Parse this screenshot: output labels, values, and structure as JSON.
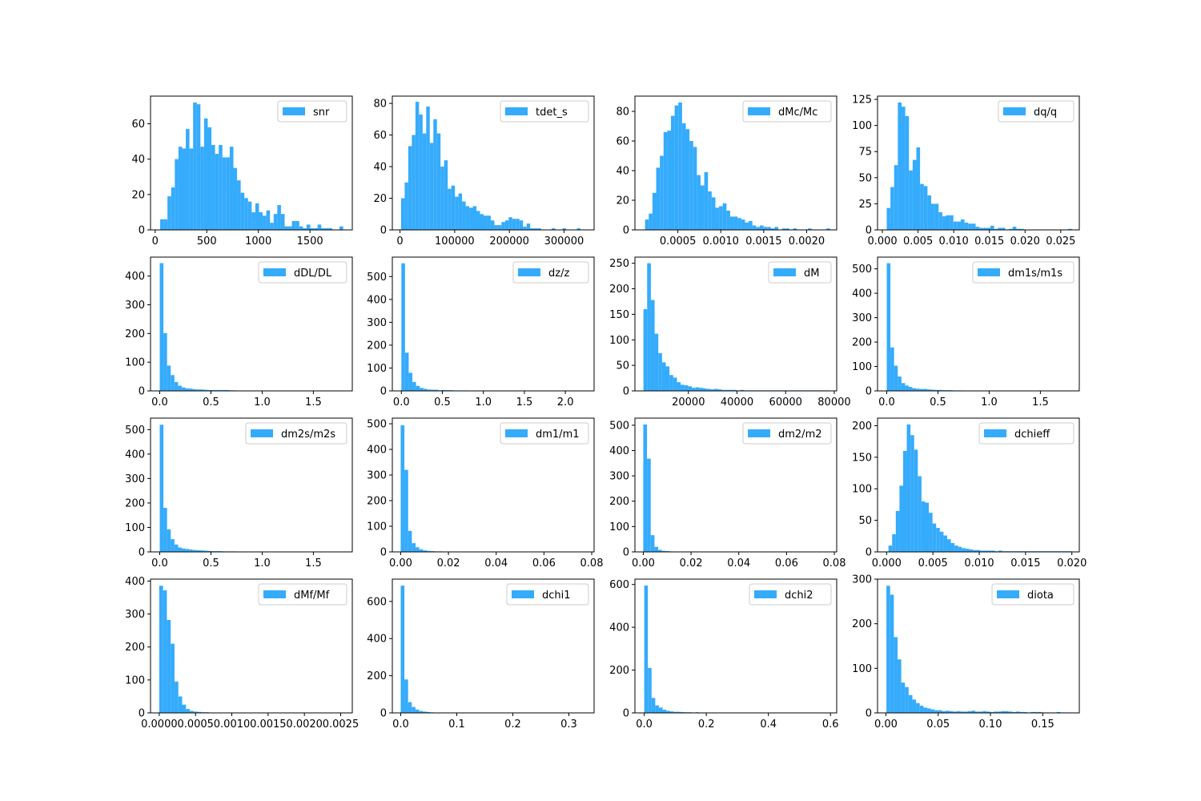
{
  "figure": {
    "bar_color": "#35abfc",
    "rows": 4,
    "cols": 4
  },
  "chart_data": [
    {
      "type": "bar",
      "legend": "snr",
      "legend_position": "upper right",
      "xlim": [
        -45,
        1910
      ],
      "ylim": [
        0,
        75.6
      ],
      "xticks": [
        0,
        500,
        1000,
        1500
      ],
      "xtick_labels": [
        "0",
        "500",
        "1000",
        "1500"
      ],
      "yticks": [
        0,
        20,
        40,
        60
      ],
      "ytick_labels": [
        "0",
        "20",
        "40",
        "60"
      ],
      "bin_start": 48.4,
      "bin_width": 35.47,
      "counts": [
        6,
        6,
        19,
        24,
        40,
        47,
        46,
        57,
        46,
        72,
        71,
        47,
        63,
        58,
        48,
        43,
        48,
        41,
        41,
        47,
        35,
        28,
        21,
        18,
        16,
        10,
        15,
        10,
        8,
        11,
        4,
        9,
        14,
        9,
        2,
        2,
        5,
        5,
        2,
        1,
        3,
        1,
        1,
        3,
        1,
        1,
        1,
        0,
        0,
        2
      ]
    },
    {
      "type": "bar",
      "legend": "tdet_s",
      "legend_position": "upper right",
      "xlim": [
        -14000,
        355000
      ],
      "ylim": [
        0,
        84.6
      ],
      "xticks": [
        0,
        100000,
        200000,
        300000
      ],
      "xtick_labels": [
        "0",
        "100000",
        "200000",
        "300000"
      ],
      "yticks": [
        0,
        20,
        40,
        60,
        80
      ],
      "ytick_labels": [
        "0",
        "20",
        "40",
        "60",
        "80"
      ],
      "bin_start": 2000,
      "bin_width": 6560,
      "counts": [
        20,
        30,
        53,
        60,
        81,
        73,
        61,
        78,
        55,
        70,
        61,
        40,
        44,
        26,
        28,
        21,
        23,
        18,
        15,
        14,
        15,
        12,
        10,
        9,
        9,
        6,
        3,
        3,
        5,
        6,
        8,
        7,
        7,
        6,
        2,
        4,
        1,
        1,
        1,
        0,
        0,
        0,
        1,
        0,
        0,
        1,
        0,
        0,
        0,
        1
      ]
    },
    {
      "type": "bar",
      "legend": "dMc/Mc",
      "legend_position": "upper right",
      "xlim": [
        0.0,
        0.00235
      ],
      "ylim": [
        0,
        90.3
      ],
      "xticks": [
        0.0005,
        0.001,
        0.0015,
        0.002
      ],
      "xtick_labels": [
        "0.0005",
        "0.0010",
        "0.0015",
        "0.0020"
      ],
      "yticks": [
        0,
        20,
        40,
        60,
        80
      ],
      "ytick_labels": [
        "0",
        "20",
        "40",
        "60",
        "80"
      ],
      "bin_start": 0.000118,
      "bin_width": 4.31e-05,
      "counts": [
        7,
        11,
        25,
        42,
        50,
        66,
        67,
        77,
        84,
        86,
        72,
        68,
        60,
        56,
        37,
        30,
        39,
        26,
        22,
        15,
        16,
        18,
        13,
        9,
        9,
        8,
        7,
        5,
        6,
        3,
        2,
        3,
        2,
        2,
        1,
        2,
        0,
        1,
        1,
        0,
        1,
        0,
        0,
        0,
        1,
        0,
        0,
        0,
        0,
        1
      ]
    },
    {
      "type": "bar",
      "legend": "dq/q",
      "legend_position": "upper right",
      "xlim": [
        -0.00068,
        0.0276
      ],
      "ylim": [
        0,
        128.1
      ],
      "xticks": [
        0.0,
        0.005,
        0.01,
        0.015,
        0.02,
        0.025
      ],
      "xtick_labels": [
        "0.000",
        "0.005",
        "0.010",
        "0.015",
        "0.020",
        "0.025"
      ],
      "yticks": [
        0,
        25,
        50,
        75,
        100,
        125
      ],
      "ytick_labels": [
        "0",
        "25",
        "50",
        "75",
        "100",
        "125"
      ],
      "bin_start": 0.00061,
      "bin_width": 0.000519,
      "counts": [
        21,
        41,
        62,
        122,
        118,
        109,
        57,
        67,
        79,
        44,
        42,
        33,
        25,
        25,
        17,
        13,
        14,
        14,
        8,
        8,
        10,
        7,
        6,
        6,
        3,
        2,
        2,
        2,
        4,
        1,
        2,
        2,
        0,
        1,
        3,
        1,
        1,
        0,
        0,
        0,
        0,
        0,
        0,
        0,
        0,
        0,
        0,
        0,
        0,
        1
      ]
    },
    {
      "type": "bar",
      "legend": "dDL/DL",
      "legend_position": "upper right",
      "xlim": [
        -0.09,
        1.88
      ],
      "ylim": [
        0,
        466
      ],
      "xticks": [
        0.0,
        0.5,
        1.0,
        1.5
      ],
      "xtick_labels": [
        "0.0",
        "0.5",
        "1.0",
        "1.5"
      ],
      "yticks": [
        0,
        100,
        200,
        300,
        400
      ],
      "ytick_labels": [
        "0",
        "100",
        "200",
        "300",
        "400"
      ],
      "bin_start": 0.0,
      "bin_width": 0.0358,
      "counts": [
        445,
        201,
        88,
        55,
        31,
        18,
        12,
        9,
        8,
        6,
        5,
        5,
        4,
        3,
        3,
        3,
        3,
        3,
        3,
        2,
        2,
        1,
        1,
        1,
        1,
        1,
        1,
        1,
        1,
        1,
        1,
        1,
        1,
        1,
        1,
        1,
        1,
        1,
        1,
        1,
        1,
        1,
        1,
        1,
        1,
        1,
        1,
        1,
        1,
        1
      ]
    },
    {
      "type": "bar",
      "legend": "dz/z",
      "legend_position": "upper right",
      "xlim": [
        -0.11,
        2.35
      ],
      "ylim": [
        0,
        585
      ],
      "xticks": [
        0.0,
        0.5,
        1.0,
        1.5,
        2.0
      ],
      "xtick_labels": [
        "0.0",
        "0.5",
        "1.0",
        "1.5",
        "2.0"
      ],
      "yticks": [
        0,
        100,
        200,
        300,
        400,
        500
      ],
      "ytick_labels": [
        "0",
        "100",
        "200",
        "300",
        "400",
        "500"
      ],
      "bin_start": 0.0,
      "bin_width": 0.0448,
      "counts": [
        558,
        167,
        79,
        39,
        22,
        13,
        9,
        6,
        5,
        5,
        3,
        4,
        3,
        3,
        2,
        2,
        2,
        2,
        1,
        1,
        1,
        1,
        1,
        1,
        1,
        1,
        1,
        1,
        1,
        1,
        1,
        1,
        1,
        1,
        1,
        1,
        1,
        1,
        1,
        1,
        1,
        1,
        1,
        1,
        1,
        1,
        1,
        1,
        1,
        1
      ]
    },
    {
      "type": "bar",
      "legend": "dM",
      "legend_position": "upper right",
      "xlim": [
        -2000,
        81000
      ],
      "ylim": [
        0,
        262
      ],
      "xticks": [
        20000,
        40000,
        60000,
        80000
      ],
      "xtick_labels": [
        "20000",
        "40000",
        "60000",
        "80000"
      ],
      "yticks": [
        0,
        50,
        100,
        150,
        200,
        250
      ],
      "ytick_labels": [
        "0",
        "50",
        "100",
        "150",
        "200",
        "250"
      ],
      "bin_start": 1500,
      "bin_width": 1530,
      "counts": [
        160,
        250,
        178,
        112,
        74,
        56,
        48,
        31,
        26,
        17,
        12,
        11,
        9,
        6,
        7,
        6,
        5,
        4,
        3,
        4,
        3,
        2,
        2,
        2,
        2,
        1,
        2,
        1,
        1,
        1,
        1,
        1,
        1,
        1,
        1,
        1,
        1,
        1,
        1,
        1,
        1,
        1,
        1,
        1,
        1,
        1,
        1,
        1,
        1,
        1
      ]
    },
    {
      "type": "bar",
      "legend": "dm1s/m1s",
      "legend_position": "upper right",
      "xlim": [
        -0.09,
        1.88
      ],
      "ylim": [
        0,
        548
      ],
      "xticks": [
        0.0,
        0.5,
        1.0,
        1.5
      ],
      "xtick_labels": [
        "0.0",
        "0.5",
        "1.0",
        "1.5"
      ],
      "yticks": [
        0,
        100,
        200,
        300,
        400,
        500
      ],
      "ytick_labels": [
        "0",
        "100",
        "200",
        "300",
        "400",
        "500"
      ],
      "bin_start": 0.0,
      "bin_width": 0.0358,
      "counts": [
        523,
        178,
        103,
        59,
        32,
        22,
        16,
        11,
        9,
        8,
        8,
        6,
        5,
        4,
        4,
        3,
        3,
        3,
        2,
        2,
        2,
        1,
        1,
        1,
        1,
        1,
        1,
        1,
        1,
        1,
        1,
        1,
        1,
        1,
        1,
        1,
        1,
        1,
        1,
        1,
        1,
        1,
        1,
        1,
        1,
        1,
        1,
        1,
        1,
        1
      ]
    },
    {
      "type": "bar",
      "legend": "dm2s/m2s",
      "legend_position": "upper right",
      "xlim": [
        -0.09,
        1.88
      ],
      "ylim": [
        0,
        547
      ],
      "xticks": [
        0.0,
        0.5,
        1.0,
        1.5
      ],
      "xtick_labels": [
        "0.0",
        "0.5",
        "1.0",
        "1.5"
      ],
      "yticks": [
        0,
        100,
        200,
        300,
        400,
        500
      ],
      "ytick_labels": [
        "0",
        "100",
        "200",
        "300",
        "400",
        "500"
      ],
      "bin_start": 0.0,
      "bin_width": 0.0358,
      "counts": [
        520,
        180,
        92,
        52,
        30,
        18,
        14,
        12,
        10,
        8,
        7,
        6,
        5,
        4,
        3,
        3,
        3,
        2,
        2,
        2,
        2,
        1,
        1,
        1,
        1,
        1,
        1,
        1,
        1,
        1,
        1,
        1,
        1,
        1,
        1,
        1,
        1,
        1,
        1,
        1,
        1,
        1,
        1,
        1,
        1,
        1,
        1,
        1,
        1,
        1
      ]
    },
    {
      "type": "bar",
      "legend": "dm1/m1",
      "legend_position": "upper right",
      "xlim": [
        -0.0035,
        0.081
      ],
      "ylim": [
        0,
        522
      ],
      "xticks": [
        0.0,
        0.02,
        0.04,
        0.06,
        0.08
      ],
      "xtick_labels": [
        "0.00",
        "0.02",
        "0.04",
        "0.06",
        "0.08"
      ],
      "yticks": [
        0,
        100,
        200,
        300,
        400,
        500
      ],
      "ytick_labels": [
        "0",
        "100",
        "200",
        "300",
        "400",
        "500"
      ],
      "bin_start": 0.0,
      "bin_width": 0.00156,
      "counts": [
        494,
        320,
        82,
        34,
        18,
        10,
        6,
        4,
        3,
        2,
        2,
        1,
        1,
        1,
        1,
        1,
        1,
        1,
        1,
        1,
        1,
        1,
        1,
        1,
        1,
        1,
        1,
        1,
        1,
        1,
        1,
        1,
        1,
        1,
        1,
        1,
        1,
        1,
        1,
        1,
        1,
        1,
        1,
        1,
        1,
        1,
        1,
        1,
        1,
        1
      ]
    },
    {
      "type": "bar",
      "legend": "dm2/m2",
      "legend_position": "upper right",
      "xlim": [
        -0.0035,
        0.081
      ],
      "ylim": [
        0,
        528
      ],
      "xticks": [
        0.0,
        0.02,
        0.04,
        0.06,
        0.08
      ],
      "xtick_labels": [
        "0.00",
        "0.02",
        "0.04",
        "0.06",
        "0.08"
      ],
      "yticks": [
        0,
        100,
        200,
        300,
        400,
        500
      ],
      "ytick_labels": [
        "0",
        "100",
        "200",
        "300",
        "400",
        "500"
      ],
      "bin_start": 0.0,
      "bin_width": 0.00156,
      "counts": [
        503,
        368,
        66,
        20,
        8,
        4,
        3,
        2,
        1,
        1,
        1,
        1,
        1,
        1,
        1,
        1,
        1,
        1,
        1,
        1,
        1,
        1,
        1,
        1,
        1,
        1,
        1,
        1,
        1,
        1,
        1,
        1,
        1,
        1,
        1,
        1,
        1,
        1,
        1,
        1,
        1,
        1,
        1,
        1,
        1,
        1,
        1,
        1,
        1,
        1
      ]
    },
    {
      "type": "bar",
      "legend": "dchieff",
      "legend_position": "upper right",
      "xlim": [
        -0.00098,
        0.0208
      ],
      "ylim": [
        0,
        212
      ],
      "xticks": [
        0.0,
        0.005,
        0.01,
        0.015,
        0.02
      ],
      "xtick_labels": [
        "0.000",
        "0.005",
        "0.010",
        "0.015",
        "0.020"
      ],
      "yticks": [
        0,
        50,
        100,
        150,
        200
      ],
      "ytick_labels": [
        "0",
        "50",
        "100",
        "150",
        "200"
      ],
      "bin_start": 0.0002,
      "bin_width": 0.000396,
      "counts": [
        10,
        28,
        65,
        105,
        160,
        202,
        185,
        162,
        120,
        80,
        78,
        62,
        45,
        38,
        32,
        26,
        20,
        14,
        10,
        8,
        6,
        5,
        4,
        3,
        3,
        2,
        2,
        2,
        2,
        1,
        2,
        1,
        1,
        1,
        1,
        1,
        1,
        1,
        1,
        1,
        1,
        1,
        1,
        1,
        1,
        1,
        1,
        1,
        1,
        1
      ]
    },
    {
      "type": "bar",
      "legend": "dMf/Mf",
      "legend_position": "upper right",
      "xlim": [
        -0.00012,
        0.00266
      ],
      "ylim": [
        0,
        406
      ],
      "xticks": [
        0.0,
        0.0005,
        0.001,
        0.0015,
        0.002,
        0.0025
      ],
      "xtick_labels": [
        "0.0000",
        "0.0005",
        "0.0010",
        "0.0015",
        "0.0020",
        "0.0025"
      ],
      "yticks": [
        0,
        100,
        200,
        300,
        400
      ],
      "ytick_labels": [
        "0",
        "100",
        "200",
        "300",
        "400"
      ],
      "bin_start": 0.0,
      "bin_width": 5.26e-05,
      "counts": [
        386,
        372,
        282,
        210,
        95,
        50,
        25,
        12,
        6,
        4,
        3,
        2,
        2,
        1,
        1,
        1,
        1,
        1,
        1,
        1,
        1,
        1,
        1,
        1,
        1,
        1,
        1,
        1,
        1,
        1,
        1,
        1,
        1,
        1,
        1,
        1,
        1,
        1,
        1,
        1,
        1,
        1,
        1,
        1,
        1,
        1,
        1,
        1,
        1,
        1
      ]
    },
    {
      "type": "bar",
      "legend": "dchi1",
      "legend_position": "upper right",
      "xlim": [
        -0.015,
        0.345
      ],
      "ylim": [
        0,
        720
      ],
      "xticks": [
        0.0,
        0.1,
        0.2,
        0.3
      ],
      "xtick_labels": [
        "0.0",
        "0.1",
        "0.2",
        "0.3"
      ],
      "yticks": [
        0,
        200,
        400,
        600
      ],
      "ytick_labels": [
        "0",
        "200",
        "400",
        "600"
      ],
      "bin_start": 0.0,
      "bin_width": 0.00656,
      "counts": [
        685,
        180,
        58,
        32,
        18,
        10,
        7,
        5,
        3,
        2,
        2,
        2,
        1,
        1,
        1,
        1,
        1,
        1,
        1,
        1,
        1,
        1,
        1,
        1,
        1,
        1,
        1,
        1,
        1,
        1,
        1,
        1,
        1,
        1,
        1,
        1,
        1,
        1,
        1,
        1,
        1,
        1,
        1,
        1,
        1,
        1,
        1,
        1,
        1,
        1
      ]
    },
    {
      "type": "bar",
      "legend": "dchi2",
      "legend_position": "upper right",
      "xlim": [
        -0.03,
        0.62
      ],
      "ylim": [
        0,
        625
      ],
      "xticks": [
        0.0,
        0.2,
        0.4,
        0.6
      ],
      "xtick_labels": [
        "0.0",
        "0.2",
        "0.4",
        "0.6"
      ],
      "yticks": [
        0,
        200,
        400,
        600
      ],
      "ytick_labels": [
        "0",
        "200",
        "400",
        "600"
      ],
      "bin_start": 0.0,
      "bin_width": 0.0118,
      "counts": [
        595,
        210,
        70,
        35,
        25,
        15,
        10,
        7,
        5,
        5,
        4,
        3,
        3,
        2,
        3,
        2,
        2,
        1,
        2,
        1,
        1,
        1,
        1,
        1,
        1,
        1,
        1,
        1,
        1,
        1,
        1,
        1,
        1,
        1,
        1,
        1,
        1,
        1,
        1,
        1,
        1,
        1,
        1,
        1,
        1,
        1,
        1,
        1,
        1,
        1
      ]
    },
    {
      "type": "bar",
      "legend": "diota",
      "legend_position": "upper right",
      "xlim": [
        -0.008,
        0.185
      ],
      "ylim": [
        0,
        300
      ],
      "xticks": [
        0.0,
        0.05,
        0.1,
        0.15
      ],
      "xtick_labels": [
        "0.00",
        "0.05",
        "0.10",
        "0.15"
      ],
      "yticks": [
        0,
        100,
        200,
        300
      ],
      "ytick_labels": [
        "0",
        "100",
        "200",
        "300"
      ],
      "bin_start": 0.0005,
      "bin_width": 0.00354,
      "counts": [
        285,
        265,
        170,
        120,
        68,
        58,
        40,
        30,
        22,
        16,
        12,
        10,
        8,
        6,
        6,
        4,
        5,
        4,
        3,
        4,
        3,
        3,
        4,
        5,
        3,
        3,
        4,
        3,
        2,
        3,
        3,
        4,
        4,
        3,
        2,
        3,
        2,
        2,
        1,
        2,
        2,
        2,
        1,
        1,
        1,
        1,
        2,
        1,
        1,
        1
      ]
    }
  ]
}
